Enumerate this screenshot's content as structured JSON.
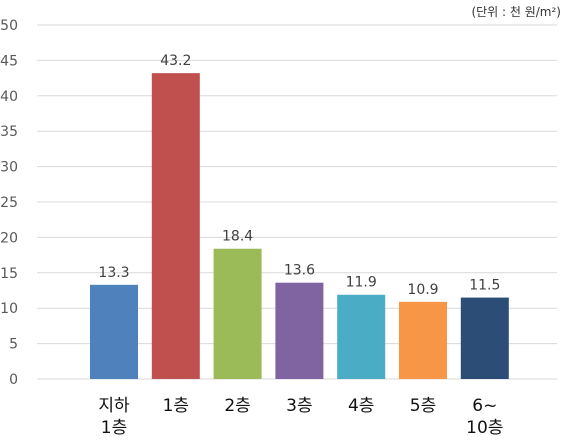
{
  "unit_note": "(단위 : 천 원/m²)",
  "chart_data": {
    "type": "bar",
    "title": "",
    "xlabel": "",
    "ylabel": "",
    "unit": "(단위 : 천 원/m²)",
    "categories": [
      [
        "지하",
        "1층"
      ],
      [
        "1층"
      ],
      [
        "2층"
      ],
      [
        "3층"
      ],
      [
        "4층"
      ],
      [
        "5층"
      ],
      [
        "6~",
        "10층"
      ]
    ],
    "values": [
      13.3,
      43.2,
      18.4,
      13.6,
      11.9,
      10.9,
      11.5
    ],
    "colors": [
      "#4f81bd",
      "#c0504d",
      "#9bbb59",
      "#8064a2",
      "#4bacc6",
      "#f79646",
      "#2c4d75"
    ],
    "ylim": [
      0,
      50
    ],
    "yticks": [
      0,
      5,
      10,
      15,
      20,
      25,
      30,
      35,
      40,
      45,
      50
    ],
    "grid": true,
    "gridline_color": "#d9d9d9",
    "legend": "none"
  }
}
